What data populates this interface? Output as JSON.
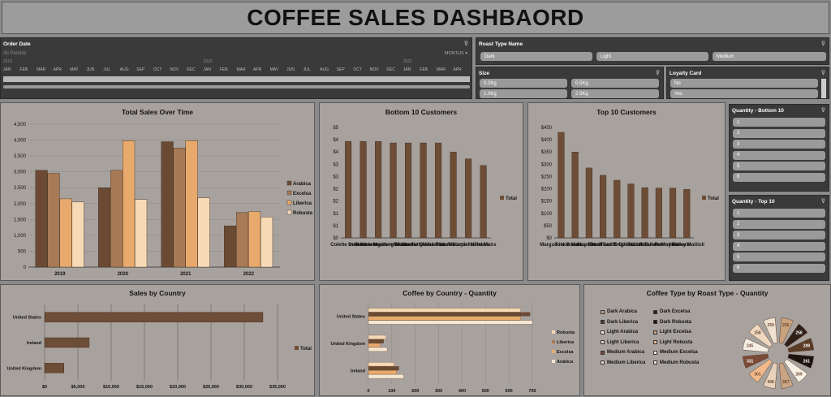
{
  "title": "COFFEE SALES DASHBAORD",
  "order_date": {
    "header": "Order Date",
    "all_periods": "All Periods",
    "months_label": "MONTHS",
    "years": [
      "2019",
      "2020",
      "2021"
    ],
    "months": [
      "JAN",
      "FEB",
      "MAR",
      "APR",
      "MAY",
      "JUN",
      "JUL",
      "AUG",
      "SEP",
      "OCT",
      "NOV",
      "DEC",
      "JAN",
      "FEB",
      "MAR",
      "APR",
      "MAY",
      "JUN",
      "JUL",
      "AUG",
      "SEP",
      "OCT",
      "NOV",
      "DEC",
      "JAN",
      "FEB",
      "MAR",
      "APR"
    ]
  },
  "roast_type": {
    "header": "Roast Type Name",
    "options": [
      "Dark",
      "Light",
      "Medium"
    ]
  },
  "size": {
    "header": "Size",
    "options": [
      "0.2Kg",
      "0.5Kg",
      "1.0Kg",
      "2.5Kg"
    ]
  },
  "loyalty": {
    "header": "Loyalty Card",
    "options": [
      "No",
      "Yes"
    ]
  },
  "qty_bottom": {
    "header": "Quantity - Bottom 10",
    "options": [
      "1",
      "2",
      "3",
      "4",
      "5",
      "6"
    ]
  },
  "qty_top": {
    "header": "Quantity - Top 10",
    "options": [
      "1",
      "2",
      "3",
      "4",
      "5",
      "6"
    ]
  },
  "colors": {
    "arabica": "#6b4a33",
    "excelsa": "#a87a55",
    "liberica": "#e8aa6c",
    "robusta": "#f6d9b5",
    "total": "#6e4d36"
  },
  "chart_data": [
    {
      "type": "bar",
      "title": "Total Sales Over Time",
      "categories": [
        "2019",
        "2020",
        "2021",
        "2022"
      ],
      "series": [
        {
          "name": "Arabica",
          "values": [
            3050,
            2500,
            3950,
            1300
          ]
        },
        {
          "name": "Excelsa",
          "values": [
            2950,
            3050,
            3750,
            1720
          ]
        },
        {
          "name": "Liberica",
          "values": [
            2150,
            3980,
            3980,
            1750
          ]
        },
        {
          "name": "Robusta",
          "values": [
            2050,
            2130,
            2180,
            1580
          ]
        }
      ],
      "ylim": [
        0,
        4500
      ],
      "yticks": [
        "0",
        "500",
        "1,000",
        "1,500",
        "2,000",
        "2,500",
        "3,000",
        "3,500",
        "4,000",
        "4,500"
      ]
    },
    {
      "type": "bar",
      "title": "Bottom 10 Customers",
      "categories": [
        "Colette Drewett",
        "Sole Scourer",
        "Donnie Hedderwick",
        "Ingaberg Mulimer",
        "Tomas Sutty",
        "Merrile Cobbledick",
        "Abba Pummell",
        "Hazel Iacopini",
        "Violante Hallmore",
        "Hillel Mairs"
      ],
      "series": [
        {
          "name": "Total",
          "values": [
            4.37,
            4.37,
            4.37,
            4.3,
            4.3,
            4.3,
            4.3,
            3.89,
            3.58,
            3.28
          ]
        }
      ],
      "ylim": [
        0,
        5
      ],
      "yticks": [
        "$0",
        "$1",
        "$1",
        "$2",
        "$2",
        "$3",
        "$3",
        "$4",
        "$4",
        "$5"
      ]
    },
    {
      "type": "bar",
      "title": "Top 10 Customers",
      "categories": [
        "Marguerite Graves",
        "Tuckie Mathonnet",
        "Alvy Brush",
        "Don Flintiff",
        "Fawn Brighton",
        "Codi Littell",
        "Nicola Bulmer",
        "Abraham Mocsen",
        "Franny Pickerin",
        "Hartley Mattioli"
      ],
      "series": [
        {
          "name": "Total",
          "values": [
            430,
            350,
            285,
            255,
            235,
            220,
            205,
            203,
            203,
            198
          ]
        }
      ],
      "ylim": [
        0,
        450
      ],
      "yticks": [
        "$0",
        "$50",
        "$100",
        "$150",
        "$200",
        "$250",
        "$300",
        "$350",
        "$400",
        "$450"
      ]
    },
    {
      "type": "bar",
      "title": "Sales by Country",
      "categories": [
        "United States",
        "Ireland",
        "United Kingdom"
      ],
      "series": [
        {
          "name": "Total",
          "values": [
            32800,
            6700,
            2900
          ]
        }
      ],
      "xlim": [
        0,
        35000
      ],
      "xticks": [
        "$0",
        "$5,000",
        "$10,000",
        "$15,000",
        "$20,000",
        "$25,000",
        "$30,000",
        "$35,000"
      ]
    },
    {
      "type": "bar",
      "title": "Coffee by Country - Quantity",
      "categories": [
        "United States",
        "United Kingdom",
        "Ireland"
      ],
      "series": [
        {
          "name": "Robusta",
          "values": [
            650,
            75,
            110
          ]
        },
        {
          "name": "Liberica",
          "values": [
            690,
            65,
            130
          ]
        },
        {
          "name": "Excelsa",
          "values": [
            650,
            50,
            120
          ]
        },
        {
          "name": "Arabica",
          "values": [
            700,
            80,
            150
          ]
        }
      ],
      "xlim": [
        0,
        700
      ],
      "xticks": [
        "0",
        "100",
        "200",
        "300",
        "400",
        "500",
        "600",
        "700"
      ]
    },
    {
      "type": "pie",
      "title": "Coffee Type by Roast Type - Quantity",
      "series": [
        {
          "name": "Dark Arabica",
          "value": 256,
          "color": "#c8a27d"
        },
        {
          "name": "Dark Excelsa",
          "value": 258,
          "color": "#2f2017"
        },
        {
          "name": "Dark Liberica",
          "value": 289,
          "color": "#5a3b25"
        },
        {
          "name": "Dark Robusta",
          "value": 261,
          "color": "#1d140e"
        },
        {
          "name": "Light Arabica",
          "value": 269,
          "color": "#f8efe4"
        },
        {
          "name": "Light Excelsa",
          "value": 287,
          "color": "#c9a583"
        },
        {
          "name": "Light Liberica",
          "value": 408,
          "color": "#e8d2bb"
        },
        {
          "name": "Light Robusta",
          "value": 301,
          "color": "#f2b98a"
        },
        {
          "name": "Medium Arabica",
          "value": 331,
          "color": "#7b4b38"
        },
        {
          "name": "Medium Excelsa",
          "value": 245,
          "color": "#f5eee4"
        },
        {
          "name": "Medium Liberica",
          "value": 258,
          "color": "#efd8c0"
        },
        {
          "name": "Medium Robusta",
          "value": 259,
          "color": "#efe1cf"
        }
      ]
    }
  ]
}
